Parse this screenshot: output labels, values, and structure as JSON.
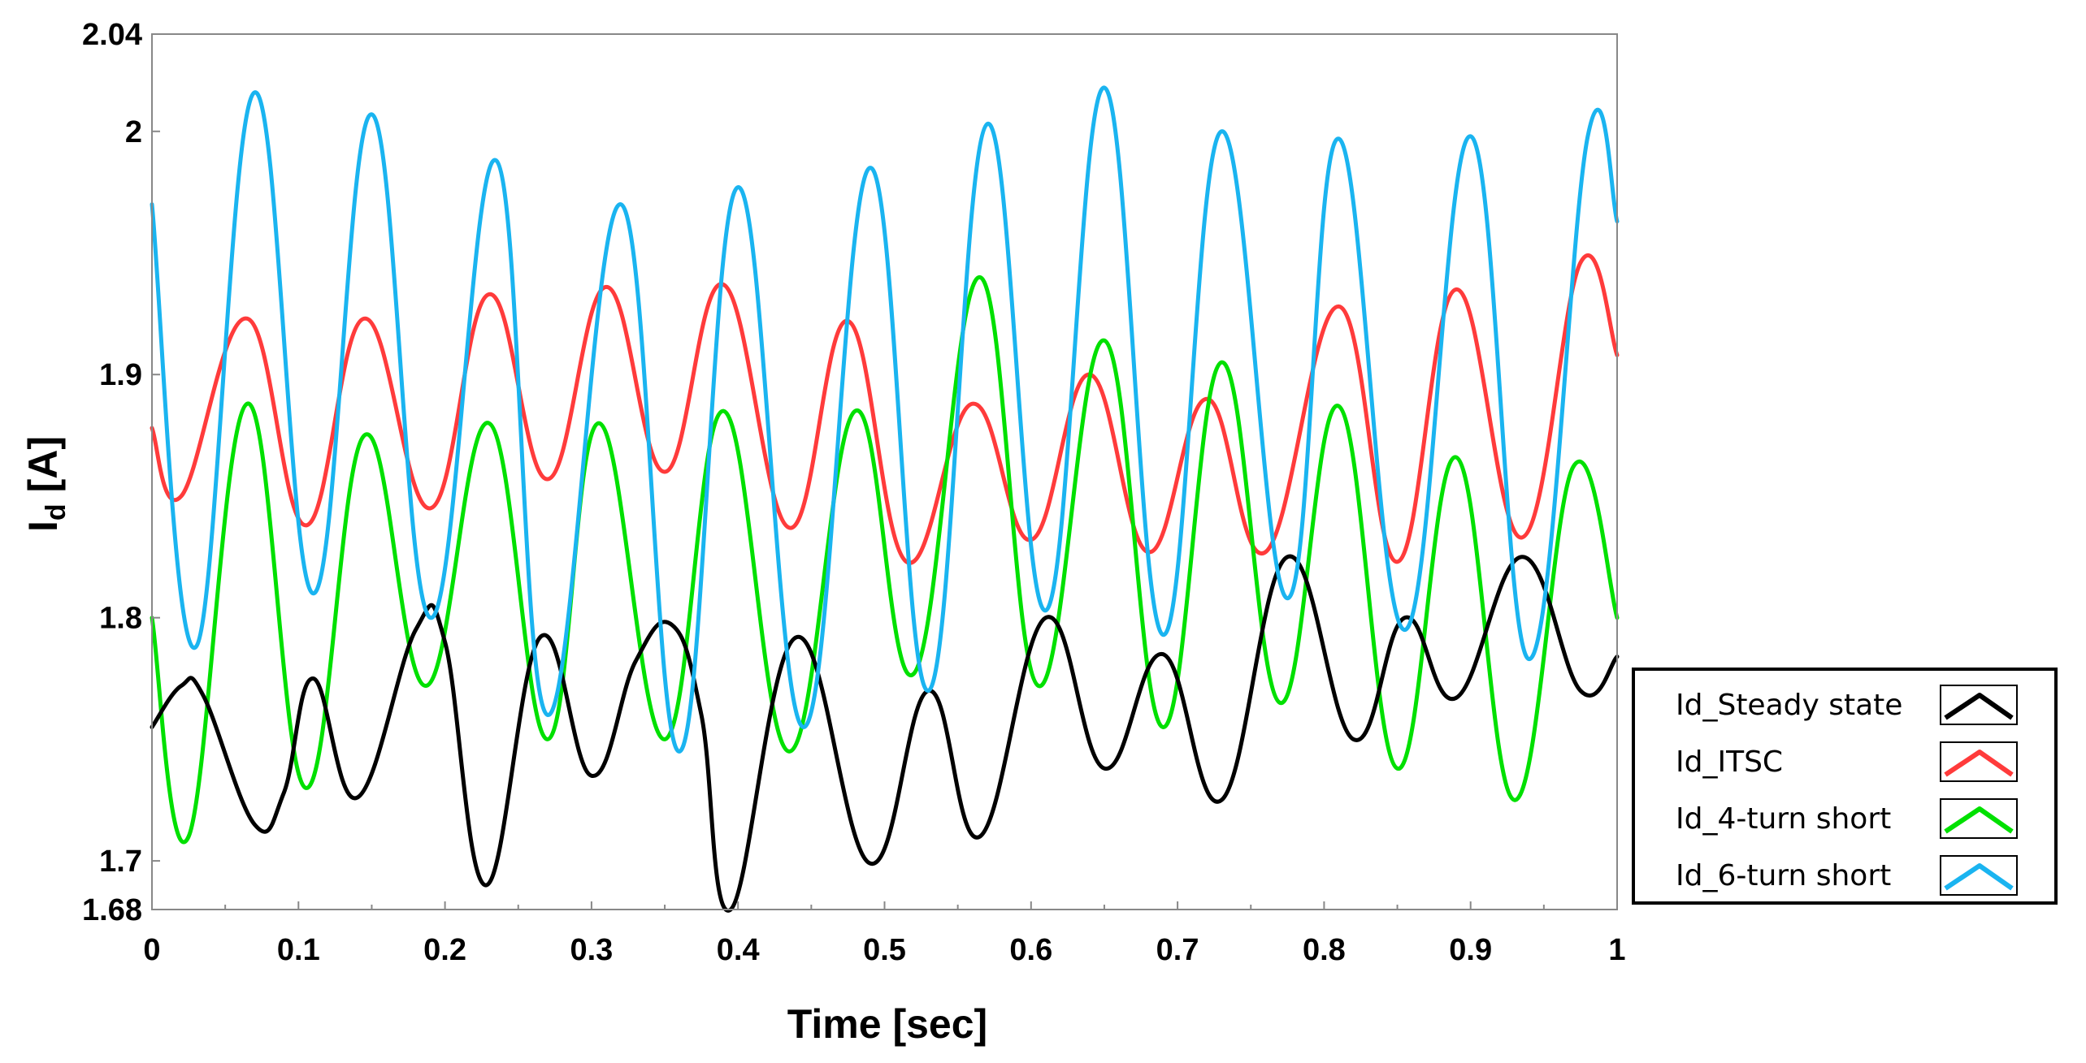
{
  "chart_data": {
    "type": "line",
    "title": "",
    "xlabel": "Time [sec]",
    "ylabel_main": "I",
    "ylabel_sub": "d",
    "ylabel_unit": " [A]",
    "xlim": [
      0,
      1
    ],
    "ylim": [
      1.68,
      2.04
    ],
    "x_ticks": [
      0,
      0.1,
      0.2,
      0.3,
      0.4,
      0.5,
      0.6,
      0.7,
      0.8,
      0.9,
      1
    ],
    "x_tick_labels": [
      "0",
      "0.1",
      "0.2",
      "0.3",
      "0.4",
      "0.5",
      "0.6",
      "0.7",
      "0.8",
      "0.9",
      "1"
    ],
    "y_ticks": [
      1.68,
      1.7,
      1.8,
      1.9,
      2,
      2.04
    ],
    "y_tick_labels": [
      "1.68",
      "1.7",
      "1.8",
      "1.9",
      "2",
      "2.04"
    ],
    "grid": false,
    "legend_position": "right",
    "series": [
      {
        "name": "Id_Steady state",
        "color": "#000000",
        "x": [
          0,
          0.02,
          0.035,
          0.07,
          0.09,
          0.11,
          0.14,
          0.18,
          0.2,
          0.228,
          0.265,
          0.3,
          0.33,
          0.355,
          0.375,
          0.395,
          0.44,
          0.49,
          0.53,
          0.565,
          0.61,
          0.65,
          0.69,
          0.73,
          0.775,
          0.82,
          0.855,
          0.89,
          0.935,
          0.975,
          1
        ],
        "values": [
          1.755,
          1.772,
          1.768,
          1.715,
          1.728,
          1.775,
          1.726,
          1.795,
          1.79,
          1.69,
          1.792,
          1.735,
          1.782,
          1.797,
          1.76,
          1.68,
          1.792,
          1.699,
          1.77,
          1.71,
          1.8,
          1.738,
          1.785,
          1.725,
          1.825,
          1.75,
          1.8,
          1.767,
          1.825,
          1.77,
          1.784
        ]
      },
      {
        "name": "Id_ITSC",
        "color": "#ff3b3b",
        "x": [
          0,
          0.02,
          0.065,
          0.105,
          0.145,
          0.19,
          0.23,
          0.27,
          0.31,
          0.35,
          0.39,
          0.435,
          0.475,
          0.515,
          0.56,
          0.6,
          0.64,
          0.68,
          0.72,
          0.76,
          0.81,
          0.85,
          0.89,
          0.935,
          0.975,
          1
        ],
        "values": [
          1.878,
          1.85,
          1.923,
          1.838,
          1.923,
          1.845,
          1.933,
          1.857,
          1.936,
          1.86,
          1.937,
          1.837,
          1.922,
          1.823,
          1.888,
          1.832,
          1.9,
          1.827,
          1.89,
          1.827,
          1.928,
          1.823,
          1.935,
          1.833,
          1.946,
          1.908
        ]
      },
      {
        "name": "Id_4-turn short",
        "color": "#00e000",
        "x": [
          0,
          0.025,
          0.065,
          0.105,
          0.145,
          0.187,
          0.23,
          0.27,
          0.305,
          0.35,
          0.39,
          0.435,
          0.48,
          0.52,
          0.565,
          0.605,
          0.65,
          0.69,
          0.73,
          0.77,
          0.81,
          0.85,
          0.89,
          0.93,
          0.97,
          1
        ],
        "values": [
          1.8,
          1.71,
          1.888,
          1.73,
          1.875,
          1.772,
          1.88,
          1.75,
          1.88,
          1.75,
          1.885,
          1.745,
          1.885,
          1.777,
          1.94,
          1.772,
          1.914,
          1.755,
          1.905,
          1.765,
          1.887,
          1.738,
          1.866,
          1.725,
          1.862,
          1.8
        ]
      },
      {
        "name": "Id_6-turn short",
        "color": "#1ab4f0",
        "x": [
          0,
          0.03,
          0.07,
          0.11,
          0.15,
          0.19,
          0.235,
          0.27,
          0.32,
          0.36,
          0.4,
          0.445,
          0.49,
          0.53,
          0.57,
          0.61,
          0.65,
          0.69,
          0.73,
          0.775,
          0.81,
          0.855,
          0.9,
          0.94,
          0.98,
          1
        ],
        "values": [
          1.97,
          1.788,
          2.016,
          1.81,
          2.007,
          1.8,
          1.988,
          1.76,
          1.97,
          1.745,
          1.977,
          1.755,
          1.985,
          1.77,
          2.003,
          1.803,
          2.018,
          1.793,
          2.0,
          1.808,
          1.997,
          1.795,
          1.998,
          1.783,
          1.998,
          1.963
        ]
      }
    ]
  }
}
